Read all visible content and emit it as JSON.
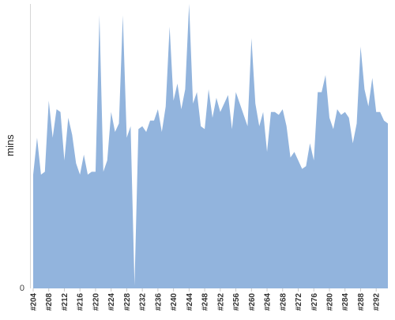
{
  "chart_data": {
    "type": "area",
    "title": "",
    "xlabel": "",
    "ylabel": "mins",
    "ylim": [
      0,
      100
    ],
    "y_tick_labels": [
      "0"
    ],
    "grid": false,
    "legend": "none",
    "x_start": 204,
    "x_tick_labels": [
      "#204",
      "#208",
      "#212",
      "#216",
      "#220",
      "#224",
      "#228",
      "#232",
      "#236",
      "#240",
      "#244",
      "#248",
      "#252",
      "#256",
      "#260",
      "#264",
      "#268",
      "#272",
      "#276",
      "#280",
      "#284",
      "#288",
      "#292"
    ],
    "series": [
      {
        "name": "",
        "color": "#92b4dd",
        "values": [
          40,
          53,
          40,
          41,
          66,
          53,
          63,
          62,
          45,
          60,
          54,
          44,
          40,
          47,
          40,
          41,
          41,
          96,
          41,
          45,
          62,
          55,
          58,
          96,
          53,
          57,
          1,
          56,
          57,
          55,
          59,
          59,
          63,
          55,
          64,
          92,
          66,
          72,
          63,
          70,
          100,
          65,
          69,
          57,
          56,
          70,
          60,
          67,
          62,
          65,
          68,
          56,
          69,
          65,
          61,
          57,
          88,
          65,
          57,
          62,
          48,
          62,
          62,
          61,
          63,
          57,
          46,
          48,
          45,
          42,
          43,
          51,
          45,
          69,
          69,
          75,
          60,
          56,
          63,
          61,
          62,
          60,
          51,
          58,
          85,
          70,
          64,
          74,
          62,
          62,
          59,
          58
        ]
      }
    ]
  }
}
